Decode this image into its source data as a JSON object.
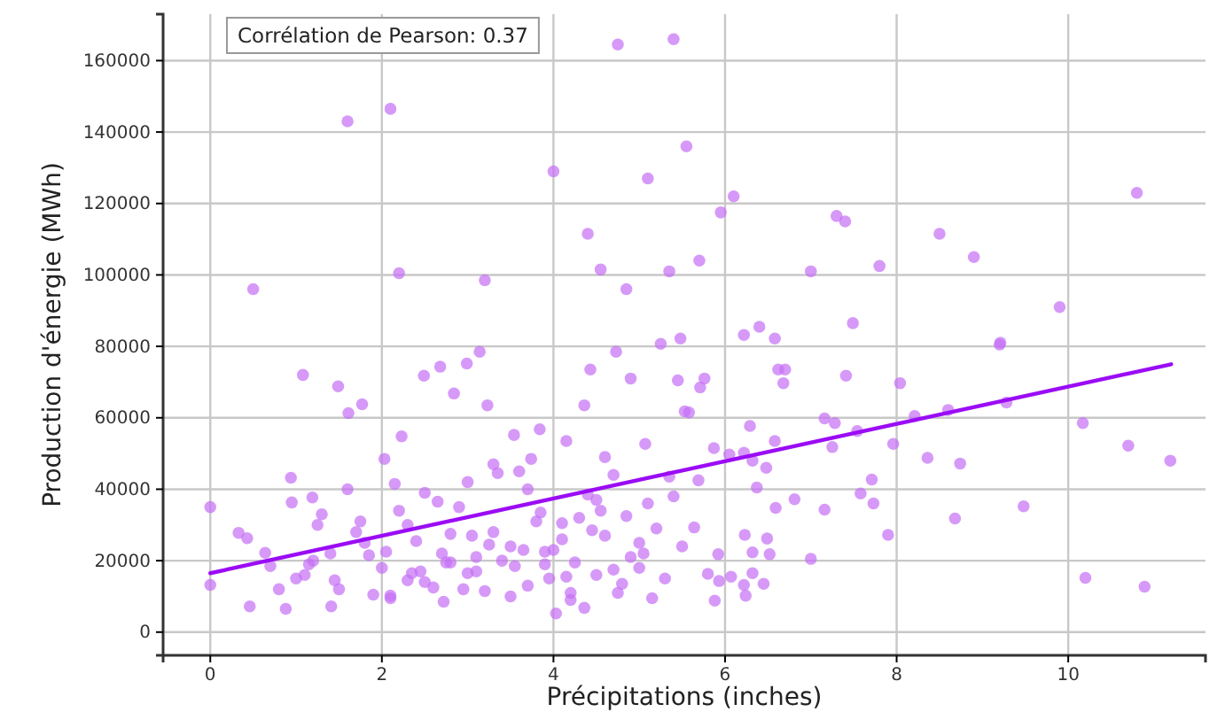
{
  "chart_data": {
    "type": "scatter",
    "xlabel": "Précipitations (inches)",
    "ylabel": "Production d'énergie (MWh)",
    "annotations": [
      "Corrélation de Pearson: 0.37"
    ],
    "xlim": [
      -0.55,
      11.6
    ],
    "ylim": [
      -6500,
      173000
    ],
    "xticks": [
      0,
      2,
      4,
      6,
      8,
      10
    ],
    "yticks": [
      0,
      20000,
      40000,
      60000,
      80000,
      100000,
      120000,
      140000,
      160000
    ],
    "grid": true,
    "series": [
      {
        "color": "#c46ef5",
        "marker": "circle",
        "x": [
          1.6,
          2.1,
          4.75,
          5.4,
          4.0,
          5.55,
          5.1,
          6.1,
          5.95,
          10.8,
          7.3,
          7.4,
          8.5,
          4.4,
          8.9,
          7.8,
          9.9,
          0.5,
          2.2,
          5.35,
          5.7,
          7.0,
          3.2,
          4.55,
          4.85,
          9.2,
          6.7,
          0,
          0,
          1.08,
          1.49,
          1.61,
          1.77,
          0.94,
          0.95,
          1.19,
          0.33,
          0.43,
          0.64,
          0.46,
          0.88,
          1.41,
          2.03,
          2.23,
          2.49,
          2.68,
          2.99,
          3.14,
          2.84,
          3.23,
          3.54,
          3.74,
          3.84,
          4.15,
          4.36,
          4.43,
          4.73,
          4.9,
          5.07,
          5.25,
          5.45,
          5.53,
          4.03,
          4.36,
          2.72,
          2.1,
          11.19,
          10.89,
          10.2,
          10.17,
          10.7,
          9.48,
          9.21,
          9.28,
          8.74,
          8.68,
          8.36,
          8.6,
          8.21,
          8.04,
          7.96,
          7.9,
          7.73,
          7.71,
          7.58,
          7.54,
          7.41,
          7.49,
          7.28,
          7.16,
          7.25,
          7.16,
          7.0,
          6.81,
          6.68,
          6.62,
          6.58,
          6.4,
          6.22,
          6.59,
          6.58,
          6.48,
          6.37,
          6.29,
          6.32,
          6.22,
          6.05,
          5.87,
          6.23,
          6.49,
          6.32,
          6.52,
          6.32,
          6.45,
          6.22,
          6.24,
          6.07,
          5.93,
          5.88,
          5.92,
          5.8,
          5.64,
          5.69,
          5.58,
          5.76,
          5.71,
          5.48,
          1.0,
          1.2,
          1.5,
          1.8,
          2.0,
          2.3,
          2.5,
          2.7,
          2.9,
          3.1,
          3.3,
          3.5,
          3.7,
          3.9,
          4.1,
          4.3,
          4.5,
          4.7,
          4.9,
          5.1,
          5.3,
          0.8,
          1.1,
          1.4,
          1.7,
          2.2,
          2.6,
          3.0,
          3.4,
          3.8,
          4.2,
          4.6,
          5.0,
          5.4,
          1.3,
          1.9,
          2.4,
          2.8,
          3.2,
          3.6,
          4.0,
          4.4,
          4.8,
          5.2,
          0.7,
          1.6,
          2.1,
          2.5,
          3.0,
          3.3,
          3.9,
          4.2,
          4.6,
          5.0,
          5.5,
          2.3,
          2.8,
          3.5,
          4.1,
          4.7,
          3.1,
          3.7,
          4.5,
          1.15,
          1.45,
          1.75,
          2.05,
          2.35,
          2.65,
          2.95,
          3.25,
          3.55,
          3.85,
          4.15,
          4.45,
          4.75,
          5.05,
          5.35,
          1.25,
          1.85,
          2.45,
          3.05,
          3.65,
          4.25,
          4.85,
          2.15,
          2.75,
          3.35,
          3.95,
          4.55,
          5.15
        ],
        "values": [
          143000,
          146500,
          164500,
          166000,
          129000,
          136000,
          127000,
          122000,
          117500,
          123000,
          116500,
          115000,
          111500,
          111500,
          105000,
          102500,
          91000,
          96000,
          100500,
          101000,
          104000,
          101000,
          98500,
          101500,
          96000,
          80500,
          73500,
          35000,
          13200,
          72000,
          68800,
          61300,
          63800,
          43200,
          36300,
          37700,
          27800,
          26300,
          22200,
          7200,
          6500,
          7200,
          48500,
          54800,
          71800,
          74300,
          75200,
          78500,
          66800,
          63500,
          55200,
          48500,
          56800,
          53500,
          63500,
          73500,
          78500,
          71000,
          52700,
          80700,
          70500,
          61800,
          5200,
          6800,
          8500,
          10200,
          48000,
          12700,
          15200,
          58500,
          52200,
          35200,
          81000,
          64300,
          47200,
          31800,
          48800,
          62200,
          60500,
          69700,
          52700,
          27200,
          36000,
          42700,
          38800,
          56300,
          71800,
          86500,
          58500,
          59800,
          51800,
          34300,
          20500,
          37200,
          69700,
          73500,
          82200,
          85500,
          83200,
          34800,
          53500,
          46000,
          40500,
          57700,
          48000,
          50200,
          49700,
          51500,
          27200,
          26200,
          22300,
          21800,
          16500,
          13500,
          13200,
          10200,
          15500,
          14300,
          8800,
          21800,
          16300,
          29300,
          42500,
          61500,
          71000,
          68500,
          82200,
          15000,
          20000,
          12000,
          25000,
          18000,
          30000,
          14000,
          22000,
          35000,
          17000,
          28000,
          24000,
          40000,
          19000,
          26000,
          32000,
          16000,
          44000,
          21000,
          36000,
          15000,
          12000,
          16000,
          22000,
          28000,
          34000,
          12500,
          42000,
          20000,
          31000,
          11000,
          27000,
          18000,
          38000,
          33000,
          10500,
          25500,
          19500,
          11500,
          45000,
          23000,
          38500,
          13500,
          29000,
          18500,
          40000,
          9500,
          39000,
          16500,
          47000,
          22500,
          9000,
          49000,
          25000,
          24000,
          14500,
          27500,
          10000,
          30500,
          17500,
          21000,
          13000,
          37000,
          19000,
          14500,
          31000,
          22500,
          16500,
          36500,
          12000,
          24500,
          18500,
          33500,
          15500,
          28500,
          11000,
          22000,
          43500,
          30000,
          21500,
          17000,
          27000,
          23000,
          19500,
          32500,
          41500,
          19500,
          44500,
          15000,
          34000,
          9500
        ]
      },
      {
        "type": "line",
        "color": "#9b0cf5",
        "x": [
          0,
          11.2
        ],
        "values": [
          16500,
          75000
        ]
      }
    ]
  }
}
